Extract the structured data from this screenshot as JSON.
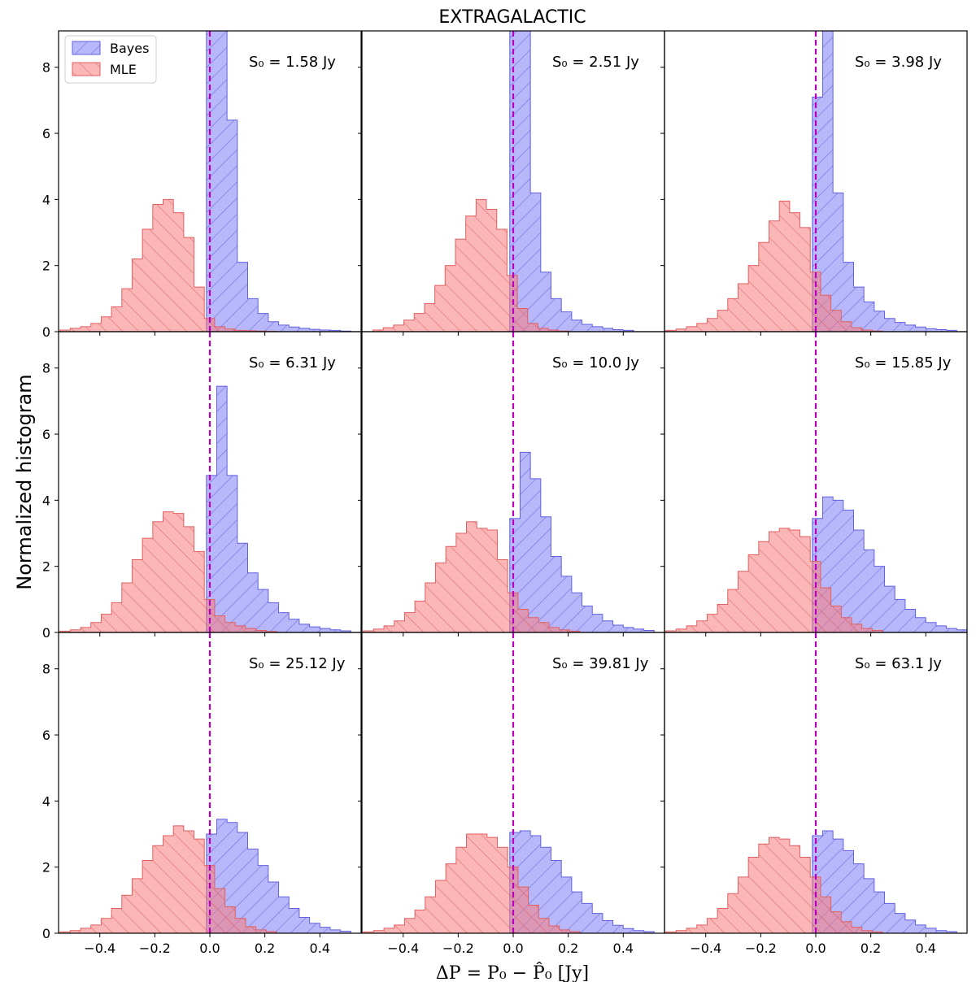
{
  "figure": {
    "title": "EXTRAGALACTIC",
    "ylabel": "Normalized histogram",
    "xlabel": "ΔP = P₀ − P̂₀ [Jy]"
  },
  "chart_data": {
    "type": "histogram-grid",
    "title": "EXTRAGALACTIC",
    "xlabel": "ΔP = P₀ − P̂₀ [Jy]",
    "ylabel": "Normalized histogram",
    "xlim": [
      -0.55,
      0.55
    ],
    "ylim": [
      0,
      9.1
    ],
    "xticks": [
      -0.4,
      -0.2,
      0.0,
      0.2,
      0.4
    ],
    "xtick_labels": [
      "−0.4",
      "−0.2",
      "0.0",
      "0.2",
      "0.4"
    ],
    "yticks": [
      0,
      2,
      4,
      6,
      8
    ],
    "ytick_labels": [
      "0",
      "2",
      "4",
      "6",
      "8"
    ],
    "reference_line_x": 0.0,
    "bin_width": 0.0375,
    "colors": {
      "bayes": "#7b7bf5",
      "bayes_edge": "#6060e0",
      "mle": "#f77b7b",
      "mle_edge": "#e06060",
      "vline": "#bb00bb"
    },
    "legend": [
      {
        "label": "Bayes",
        "color": "#7b7bf5"
      },
      {
        "label": "MLE",
        "color": "#f77b7b"
      }
    ],
    "panels": [
      {
        "label": "S₀ = 1.58 Jy",
        "bayes": {
          "start": -0.0125,
          "values": [
            10.0,
            9.9,
            6.4,
            2.1,
            1.0,
            0.55,
            0.3,
            0.2,
            0.14,
            0.1,
            0.07,
            0.05,
            0.04,
            0.02
          ]
        },
        "mle": {
          "start": -0.545,
          "values": [
            0.05,
            0.1,
            0.15,
            0.25,
            0.45,
            0.75,
            1.3,
            2.2,
            3.1,
            3.85,
            4.0,
            3.6,
            2.85,
            1.35,
            0.4,
            0.15,
            0.08,
            0.04,
            0.03,
            0.02,
            0.01
          ]
        }
      },
      {
        "label": "S₀ = 2.51 Jy",
        "bayes": {
          "start": -0.0125,
          "values": [
            10.0,
            9.5,
            4.2,
            1.8,
            1.0,
            0.6,
            0.35,
            0.22,
            0.15,
            0.1,
            0.06,
            0.04
          ]
        },
        "mle": {
          "start": -0.51,
          "values": [
            0.05,
            0.12,
            0.2,
            0.35,
            0.55,
            0.85,
            1.4,
            2.0,
            2.8,
            3.5,
            4.0,
            3.7,
            3.1,
            1.7,
            0.7,
            0.25,
            0.1,
            0.05,
            0.02
          ]
        }
      },
      {
        "label": "S₀ = 3.98 Jy",
        "bayes": {
          "start": -0.0125,
          "values": [
            7.1,
            10.0,
            4.2,
            2.1,
            1.35,
            0.9,
            0.62,
            0.4,
            0.28,
            0.2,
            0.14,
            0.09,
            0.06,
            0.04
          ]
        },
        "mle": {
          "start": -0.545,
          "values": [
            0.04,
            0.08,
            0.15,
            0.25,
            0.4,
            0.65,
            1.0,
            1.45,
            2.0,
            2.7,
            3.35,
            3.95,
            3.6,
            3.15,
            1.8,
            1.1,
            0.65,
            0.3,
            0.12,
            0.05,
            0.02
          ]
        }
      },
      {
        "label": "S₀ = 6.31 Jy",
        "bayes": {
          "start": -0.0125,
          "values": [
            4.75,
            7.45,
            4.75,
            2.7,
            1.8,
            1.3,
            0.9,
            0.6,
            0.4,
            0.25,
            0.17,
            0.12,
            0.08,
            0.05
          ]
        },
        "mle": {
          "start": -0.545,
          "values": [
            0.04,
            0.08,
            0.15,
            0.3,
            0.55,
            0.9,
            1.5,
            2.2,
            2.85,
            3.35,
            3.65,
            3.6,
            3.2,
            2.45,
            1.0,
            0.5,
            0.3,
            0.2,
            0.12,
            0.06,
            0.03
          ]
        }
      },
      {
        "label": "S₀ = 10.0 Jy",
        "bayes": {
          "start": -0.0125,
          "values": [
            3.45,
            5.45,
            4.65,
            3.5,
            2.3,
            1.7,
            1.2,
            0.8,
            0.55,
            0.35,
            0.22,
            0.15,
            0.1,
            0.06
          ]
        },
        "mle": {
          "start": -0.545,
          "values": [
            0.05,
            0.1,
            0.2,
            0.35,
            0.6,
            0.95,
            1.5,
            2.1,
            2.6,
            3.0,
            3.35,
            3.15,
            3.1,
            2.2,
            1.2,
            0.7,
            0.45,
            0.3,
            0.15,
            0.08,
            0.04
          ]
        }
      },
      {
        "label": "S₀ = 15.85 Jy",
        "bayes": {
          "start": -0.0125,
          "values": [
            3.45,
            4.1,
            4.0,
            3.7,
            3.1,
            2.5,
            2.0,
            1.4,
            1.0,
            0.7,
            0.45,
            0.3,
            0.2,
            0.12,
            0.08
          ]
        },
        "mle": {
          "start": -0.545,
          "values": [
            0.05,
            0.1,
            0.2,
            0.35,
            0.55,
            0.85,
            1.3,
            1.85,
            2.35,
            2.75,
            3.05,
            3.15,
            3.1,
            2.9,
            2.15,
            1.35,
            0.8,
            0.45,
            0.25,
            0.12,
            0.06
          ]
        }
      },
      {
        "label": "S₀ = 25.12 Jy",
        "bayes": {
          "start": -0.0125,
          "values": [
            3.0,
            3.45,
            3.35,
            3.05,
            2.55,
            2.05,
            1.55,
            1.1,
            0.75,
            0.48,
            0.3,
            0.18,
            0.1,
            0.06
          ]
        },
        "mle": {
          "start": -0.545,
          "values": [
            0.04,
            0.08,
            0.15,
            0.25,
            0.45,
            0.75,
            1.15,
            1.65,
            2.2,
            2.65,
            2.95,
            3.25,
            3.1,
            2.85,
            2.05,
            1.35,
            0.8,
            0.45,
            0.2,
            0.1,
            0.05
          ]
        }
      },
      {
        "label": "S₀ = 39.81 Jy",
        "bayes": {
          "start": -0.0125,
          "values": [
            3.05,
            3.1,
            2.95,
            2.6,
            2.2,
            1.7,
            1.25,
            0.9,
            0.6,
            0.38,
            0.24,
            0.14,
            0.08,
            0.05
          ]
        },
        "mle": {
          "start": -0.545,
          "values": [
            0.04,
            0.08,
            0.15,
            0.25,
            0.45,
            0.7,
            1.1,
            1.6,
            2.1,
            2.6,
            3.0,
            3.0,
            2.9,
            2.6,
            2.0,
            1.4,
            0.85,
            0.45,
            0.22,
            0.1,
            0.05
          ]
        }
      },
      {
        "label": "S₀ = 63.1 Jy",
        "bayes": {
          "start": -0.0125,
          "values": [
            2.95,
            3.1,
            2.85,
            2.5,
            2.1,
            1.65,
            1.25,
            0.9,
            0.6,
            0.4,
            0.25,
            0.15,
            0.08,
            0.05
          ]
        },
        "mle": {
          "start": -0.545,
          "values": [
            0.04,
            0.08,
            0.15,
            0.25,
            0.45,
            0.75,
            1.2,
            1.7,
            2.3,
            2.7,
            2.9,
            2.85,
            2.65,
            2.3,
            1.7,
            1.1,
            0.65,
            0.35,
            0.18,
            0.08,
            0.04
          ]
        }
      }
    ]
  }
}
